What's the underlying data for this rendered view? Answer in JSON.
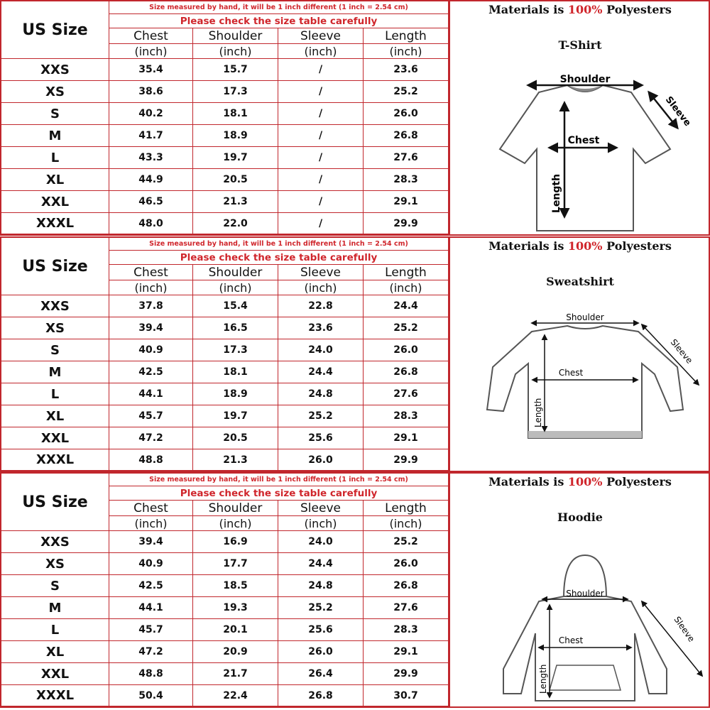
{
  "columns": [
    {
      "name": "Chest",
      "unit": "(inch)"
    },
    {
      "name": "Shoulder",
      "unit": "(inch)"
    },
    {
      "name": "Sleeve",
      "unit": "(inch)"
    },
    {
      "name": "Length",
      "unit": "(inch)"
    }
  ],
  "size_header": "US Size",
  "note_measure": "Size measured by hand, it will be 1 inch different (1 inch = 2.54 cm)",
  "note_check": "Please check the size table carefully",
  "materials": {
    "prefix": "Materials is ",
    "percent": "100%",
    "suffix": " Polyesters"
  },
  "accent_color": "#c1272d",
  "sections": [
    {
      "garment": "T-Shirt",
      "labels": {
        "shoulder": "Shoulder",
        "sleeve": "Sleeve",
        "chest": "Chest",
        "length": "Length"
      },
      "rows": [
        [
          "XXS",
          "35.4",
          "15.7",
          "/",
          "23.6"
        ],
        [
          "XS",
          "38.6",
          "17.3",
          "/",
          "25.2"
        ],
        [
          "S",
          "40.2",
          "18.1",
          "/",
          "26.0"
        ],
        [
          "M",
          "41.7",
          "18.9",
          "/",
          "26.8"
        ],
        [
          "L",
          "43.3",
          "19.7",
          "/",
          "27.6"
        ],
        [
          "XL",
          "44.9",
          "20.5",
          "/",
          "28.3"
        ],
        [
          "XXL",
          "46.5",
          "21.3",
          "/",
          "29.1"
        ],
        [
          "XXXL",
          "48.0",
          "22.0",
          "/",
          "29.9"
        ]
      ]
    },
    {
      "garment": "Sweatshirt",
      "labels": {
        "shoulder": "Shoulder",
        "sleeve": "Sleeve",
        "chest": "Chest",
        "length": "Length"
      },
      "rows": [
        [
          "XXS",
          "37.8",
          "15.4",
          "22.8",
          "24.4"
        ],
        [
          "XS",
          "39.4",
          "16.5",
          "23.6",
          "25.2"
        ],
        [
          "S",
          "40.9",
          "17.3",
          "24.0",
          "26.0"
        ],
        [
          "M",
          "42.5",
          "18.1",
          "24.4",
          "26.8"
        ],
        [
          "L",
          "44.1",
          "18.9",
          "24.8",
          "27.6"
        ],
        [
          "XL",
          "45.7",
          "19.7",
          "25.2",
          "28.3"
        ],
        [
          "XXL",
          "47.2",
          "20.5",
          "25.6",
          "29.1"
        ],
        [
          "XXXL",
          "48.8",
          "21.3",
          "26.0",
          "29.9"
        ]
      ]
    },
    {
      "garment": "Hoodie",
      "labels": {
        "shoulder": "Shoulder",
        "sleeve": "Sleeve",
        "chest": "Chest",
        "length": "Length"
      },
      "rows": [
        [
          "XXS",
          "39.4",
          "16.9",
          "24.0",
          "25.2"
        ],
        [
          "XS",
          "40.9",
          "17.7",
          "24.4",
          "26.0"
        ],
        [
          "S",
          "42.5",
          "18.5",
          "24.8",
          "26.8"
        ],
        [
          "M",
          "44.1",
          "19.3",
          "25.2",
          "27.6"
        ],
        [
          "L",
          "45.7",
          "20.1",
          "25.6",
          "28.3"
        ],
        [
          "XL",
          "47.2",
          "20.9",
          "26.0",
          "29.1"
        ],
        [
          "XXL",
          "48.8",
          "21.7",
          "26.4",
          "29.9"
        ],
        [
          "XXXL",
          "50.4",
          "22.4",
          "26.8",
          "30.7"
        ]
      ]
    }
  ]
}
